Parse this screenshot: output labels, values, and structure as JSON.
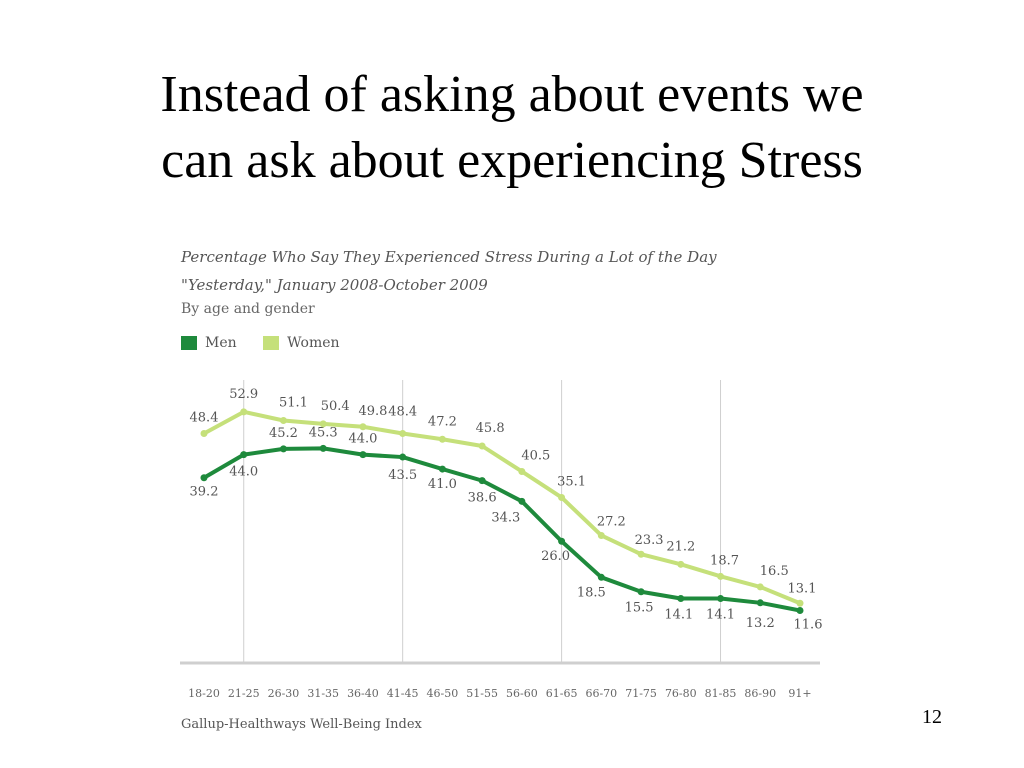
{
  "slide": {
    "title_line1": "Instead of asking about events we",
    "title_line2": "can ask about experiencing Stress",
    "page_number": "12"
  },
  "chart_data": {
    "type": "line",
    "title_line1": "Percentage Who Say They Experienced Stress During a Lot of the Day",
    "title_line2": "\"Yesterday,\" January 2008-October 2009",
    "subtitle": "By age and gender",
    "source": "Gallup-Healthways Well-Being Index",
    "categories": [
      "18-20",
      "21-25",
      "26-30",
      "31-35",
      "36-40",
      "41-45",
      "46-50",
      "51-55",
      "56-60",
      "61-65",
      "66-70",
      "71-75",
      "76-80",
      "81-85",
      "86-90",
      "91+"
    ],
    "series": [
      {
        "name": "Men",
        "color": "#1e8a3c",
        "values": [
          39.2,
          44.0,
          45.2,
          45.3,
          44.0,
          43.5,
          41.0,
          38.6,
          34.3,
          26.0,
          18.5,
          15.5,
          14.1,
          14.1,
          13.2,
          11.6
        ]
      },
      {
        "name": "Women",
        "color": "#c5e07a",
        "values": [
          48.4,
          52.9,
          51.1,
          50.4,
          49.8,
          48.4,
          47.2,
          45.8,
          40.5,
          35.1,
          27.2,
          23.3,
          21.2,
          18.7,
          16.5,
          13.1
        ]
      }
    ],
    "legend_position": "top-left",
    "grid": "vertical lines at 21-25, 41-45, 61-65, 81-85"
  }
}
